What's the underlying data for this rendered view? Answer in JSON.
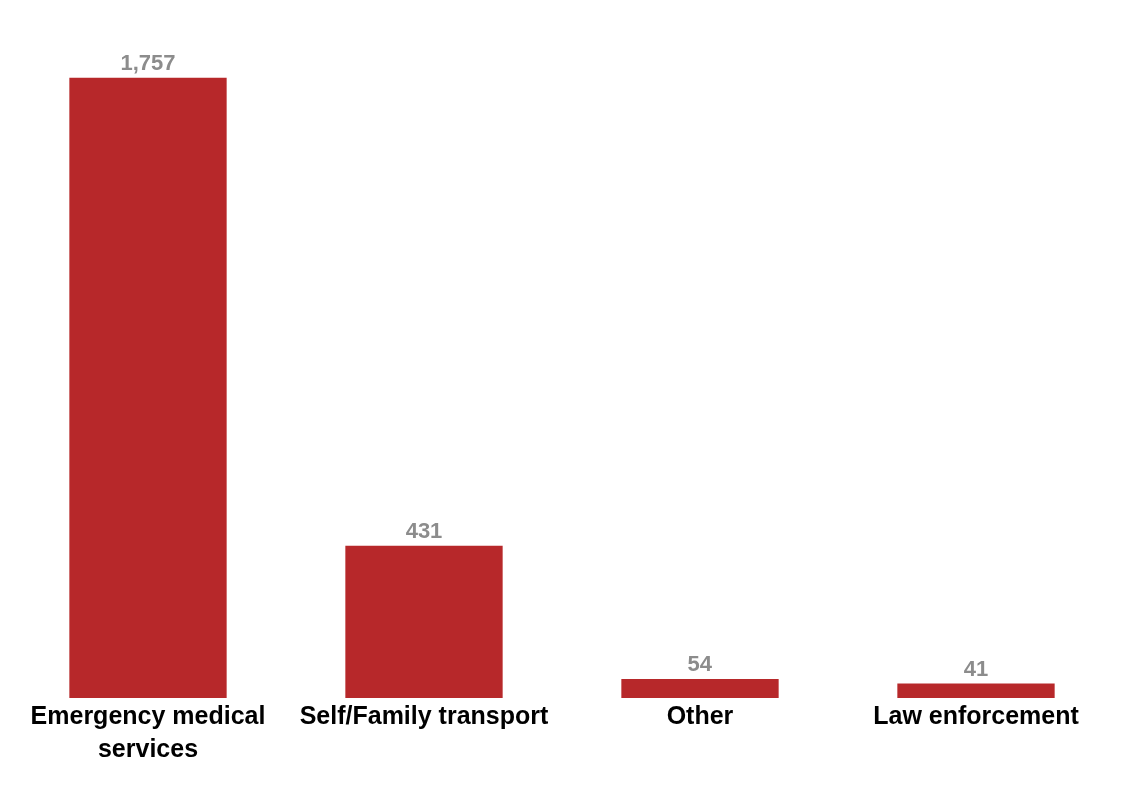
{
  "chart_data": {
    "type": "bar",
    "categories": [
      "Emergency medical services",
      "Self/Family transport",
      "Other",
      "Law enforcement"
    ],
    "values": [
      1757,
      431,
      54,
      41
    ],
    "color": "#b7282a",
    "value_labels": [
      "1,757",
      "431",
      "54",
      "41"
    ],
    "grid": false,
    "legend": false
  }
}
